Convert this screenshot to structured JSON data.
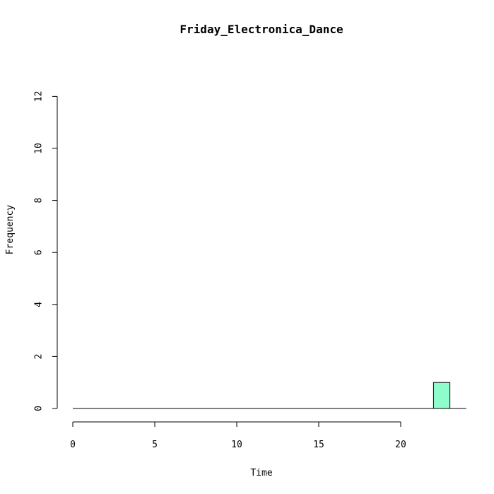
{
  "chart_data": {
    "type": "bar",
    "title": "Friday_Electronica_Dance",
    "xlabel": "Time",
    "ylabel": "Frequency",
    "xlim": [
      0,
      24
    ],
    "ylim": [
      0,
      12
    ],
    "x_ticks": [
      0,
      5,
      10,
      15,
      20
    ],
    "y_ticks": [
      0,
      2,
      4,
      6,
      8,
      10,
      12
    ],
    "bin_width": 1,
    "bins": [
      {
        "start": 0,
        "end": 1,
        "count": 0
      },
      {
        "start": 1,
        "end": 2,
        "count": 0
      },
      {
        "start": 2,
        "end": 3,
        "count": 0
      },
      {
        "start": 3,
        "end": 4,
        "count": 0
      },
      {
        "start": 4,
        "end": 5,
        "count": 0
      },
      {
        "start": 5,
        "end": 6,
        "count": 0
      },
      {
        "start": 6,
        "end": 7,
        "count": 0
      },
      {
        "start": 7,
        "end": 8,
        "count": 0
      },
      {
        "start": 8,
        "end": 9,
        "count": 0
      },
      {
        "start": 9,
        "end": 10,
        "count": 0
      },
      {
        "start": 10,
        "end": 11,
        "count": 0
      },
      {
        "start": 11,
        "end": 12,
        "count": 0
      },
      {
        "start": 12,
        "end": 13,
        "count": 0
      },
      {
        "start": 13,
        "end": 14,
        "count": 0
      },
      {
        "start": 14,
        "end": 15,
        "count": 0
      },
      {
        "start": 15,
        "end": 16,
        "count": 0
      },
      {
        "start": 16,
        "end": 17,
        "count": 0
      },
      {
        "start": 17,
        "end": 18,
        "count": 0
      },
      {
        "start": 18,
        "end": 19,
        "count": 0
      },
      {
        "start": 19,
        "end": 20,
        "count": 0
      },
      {
        "start": 20,
        "end": 21,
        "count": 0
      },
      {
        "start": 21,
        "end": 22,
        "count": 0
      },
      {
        "start": 22,
        "end": 23,
        "count": 1
      },
      {
        "start": 23,
        "end": 24,
        "count": 0
      }
    ],
    "bar_color": "#8ffccc",
    "grid": false,
    "legend": "none"
  }
}
